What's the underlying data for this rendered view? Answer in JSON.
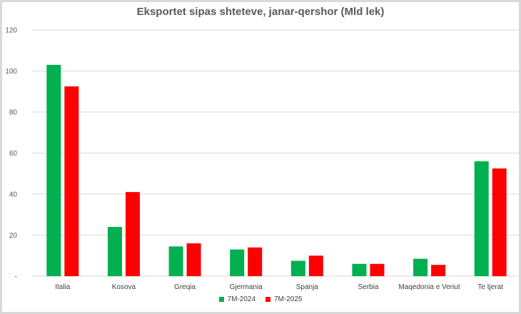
{
  "chart_data": {
    "type": "bar",
    "title": "Eksportet sipas shteteve, janar-qershor (Mld lek)",
    "categories": [
      "Italia",
      "Kosova",
      "Greqia",
      "Gjermania",
      "Spanja",
      "Serbia",
      "Maqedonia e Veriut",
      "Te tjerat"
    ],
    "series": [
      {
        "name": "7M-2024",
        "color": "#00b050",
        "values": [
          103,
          24,
          14.5,
          13,
          7.5,
          6,
          8.5,
          56
        ]
      },
      {
        "name": "7M-2025",
        "color": "#ff0000",
        "values": [
          92.5,
          41,
          16,
          14,
          10,
          6,
          5.5,
          52.5
        ]
      }
    ],
    "ylim": [
      0,
      120
    ],
    "yticks": [
      0,
      20,
      40,
      60,
      80,
      100,
      120
    ],
    "ytick_labels": [
      "-",
      "20",
      "40",
      "60",
      "80",
      "100",
      "120"
    ],
    "grid": true,
    "legend_position": "bottom-center"
  }
}
